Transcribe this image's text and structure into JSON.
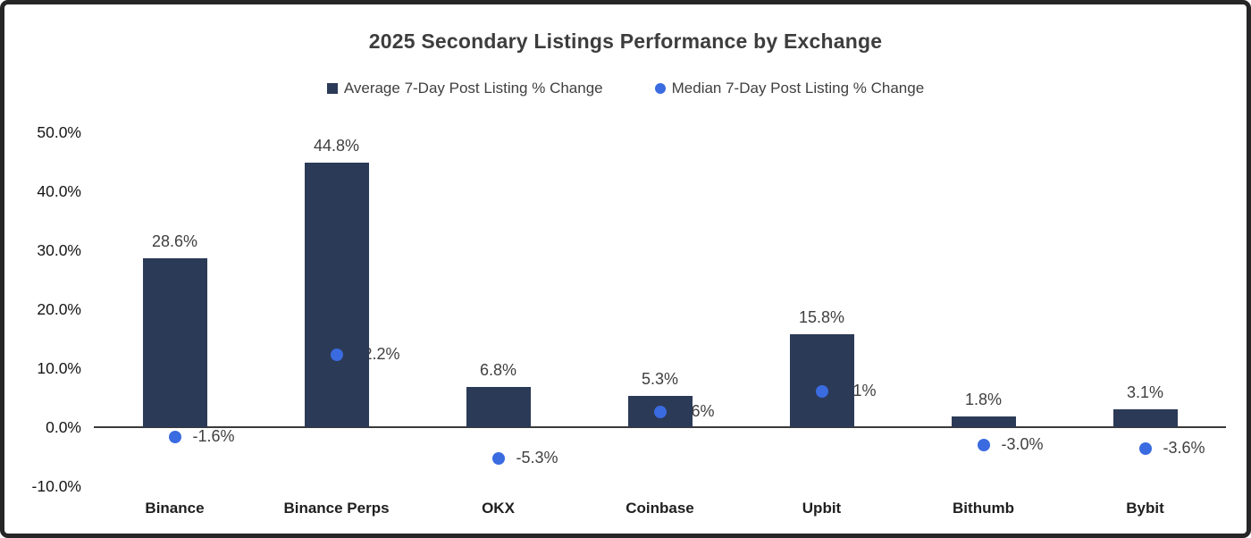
{
  "title": "2025 Secondary Listings Performance by Exchange",
  "chart_data": {
    "type": "bar",
    "title": "2025 Secondary Listings Performance by Exchange",
    "categories": [
      "Binance",
      "Binance Perps",
      "OKX",
      "Coinbase",
      "Upbit",
      "Bithumb",
      "Bybit"
    ],
    "series": [
      {
        "name": "Average 7-Day Post Listing % Change",
        "type": "bar",
        "color": "#2b3a57",
        "values": [
          28.6,
          44.8,
          6.8,
          5.3,
          15.8,
          1.8,
          3.1
        ],
        "labels": [
          "28.6%",
          "44.8%",
          "6.8%",
          "5.3%",
          "15.8%",
          "1.8%",
          "3.1%"
        ]
      },
      {
        "name": "Median 7-Day Post Listing % Change",
        "type": "scatter",
        "color": "#3a6be0",
        "values": [
          -1.6,
          12.2,
          -5.3,
          2.6,
          6.1,
          -3.0,
          -3.6
        ],
        "labels": [
          "-1.6%",
          "12.2%",
          "-5.3%",
          "2.6%",
          "6.1%",
          "-3.0%",
          "-3.6%"
        ]
      }
    ],
    "y_axis": {
      "min": -10,
      "max": 50,
      "step": 10,
      "tick_labels": [
        "50.0%",
        "40.0%",
        "30.0%",
        "20.0%",
        "10.0%",
        "0.0%",
        "-10.0%"
      ]
    },
    "legend_position": "top",
    "grid": false
  },
  "colors": {
    "bar": "#2b3a57",
    "dot": "#3a6be0",
    "frame_border": "#262626",
    "axis_line": "#3a3a3a",
    "title_text": "#3d3d3d"
  }
}
